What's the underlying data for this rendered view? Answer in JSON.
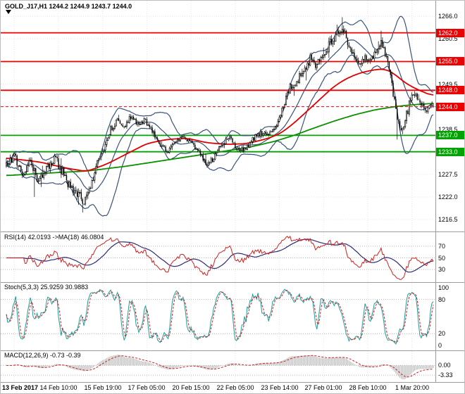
{
  "header": {
    "symbol_info": "GOLD_J17,H1  1244.2 1244.9 1243.7 1244.0"
  },
  "colors": {
    "background": "#ffffff",
    "grid": "#e6e6e6",
    "divider": "#9c9c9c",
    "axis_text": "#000000",
    "candle": "#000000",
    "bollinger": "#3a5378",
    "ma_red": "#e10000",
    "ma_green": "#0b9000",
    "line_red": "#ef0000",
    "line_green": "#00a400",
    "level_dotted": "#b8b8b8",
    "rsi_line": "#cf1f1f",
    "rsi_ma": "#2a2a7a",
    "stoch_k": "#1b9e9e",
    "stoch_d": "#cf1f1f",
    "macd_hist": "#b4b4b4",
    "macd_signal": "#cf1f1f",
    "badge_text": "#ffffff"
  },
  "chart_data": {
    "type": "candlestick",
    "symbol": "GOLD_J17",
    "timeframe": "H1",
    "current_ohlc": {
      "open": 1244.2,
      "high": 1244.9,
      "low": 1243.7,
      "close": 1244.0
    },
    "current_price": 1244.0,
    "bars": 320,
    "seed": 20170302,
    "price_axis": {
      "min": 1214.6,
      "max": 1268.8,
      "ticks": [
        1266.0,
        1260.5,
        1255.0,
        1249.5,
        1244.0,
        1238.5,
        1233.0,
        1227.5,
        1222.0,
        1216.5
      ]
    },
    "hlines": [
      {
        "price": 1262.0,
        "color": "red",
        "role": "resistance-1262"
      },
      {
        "price": 1255.0,
        "color": "red",
        "role": "resistance-1255"
      },
      {
        "price": 1248.0,
        "color": "red",
        "role": "resistance-1248"
      },
      {
        "price": 1237.0,
        "color": "green",
        "role": "support-1237"
      },
      {
        "price": 1233.0,
        "color": "green",
        "role": "support-1233"
      }
    ],
    "x_axis": {
      "labels": [
        "13 Feb 2017",
        "14 Feb 10:00",
        "15 Feb 19:00",
        "17 Feb 05:00",
        "20 Feb 15:00",
        "22 Feb 05:00",
        "23 Feb 14:00",
        "27 Feb 01:00",
        "28 Feb 10:00",
        "1 Mar 20:00"
      ],
      "bars": [
        6,
        39,
        72,
        105,
        138,
        171,
        204,
        237,
        270,
        303
      ]
    },
    "close_anchors": [
      [
        0,
        1229.5
      ],
      [
        6,
        1232
      ],
      [
        12,
        1227
      ],
      [
        18,
        1230.5
      ],
      [
        24,
        1226
      ],
      [
        30,
        1229
      ],
      [
        36,
        1231.5
      ],
      [
        42,
        1228
      ],
      [
        48,
        1224
      ],
      [
        54,
        1222.5
      ],
      [
        58,
        1220.5
      ],
      [
        62,
        1224
      ],
      [
        66,
        1228
      ],
      [
        70,
        1232
      ],
      [
        74,
        1235
      ],
      [
        78,
        1238.5
      ],
      [
        83,
        1240.5
      ],
      [
        88,
        1239
      ],
      [
        93,
        1241.5
      ],
      [
        98,
        1240
      ],
      [
        104,
        1240.5
      ],
      [
        110,
        1237.5
      ],
      [
        116,
        1234.5
      ],
      [
        121,
        1233
      ],
      [
        127,
        1235.5
      ],
      [
        133,
        1236.5
      ],
      [
        139,
        1235
      ],
      [
        145,
        1232.5
      ],
      [
        150,
        1230
      ],
      [
        155,
        1231.5
      ],
      [
        160,
        1234.5
      ],
      [
        166,
        1236.5
      ],
      [
        172,
        1234
      ],
      [
        178,
        1233.5
      ],
      [
        184,
        1236
      ],
      [
        190,
        1237.5
      ],
      [
        196,
        1237.5
      ],
      [
        200,
        1238
      ],
      [
        204,
        1241
      ],
      [
        208,
        1245.5
      ],
      [
        212,
        1248.5
      ],
      [
        217,
        1250
      ],
      [
        222,
        1253
      ],
      [
        227,
        1255.5
      ],
      [
        232,
        1254
      ],
      [
        237,
        1257
      ],
      [
        242,
        1259.5
      ],
      [
        247,
        1261.5
      ],
      [
        252,
        1262.5
      ],
      [
        256,
        1259
      ],
      [
        260,
        1255.5
      ],
      [
        264,
        1254
      ],
      [
        268,
        1256.5
      ],
      [
        272,
        1255
      ],
      [
        276,
        1257.5
      ],
      [
        280,
        1259.5
      ],
      [
        284,
        1256
      ],
      [
        287,
        1251
      ],
      [
        290,
        1245
      ],
      [
        293,
        1239.5
      ],
      [
        296,
        1238
      ],
      [
        299,
        1242
      ],
      [
        302,
        1245.5
      ],
      [
        305,
        1247.5
      ],
      [
        308,
        1246
      ],
      [
        311,
        1244.5
      ],
      [
        314,
        1243
      ],
      [
        317,
        1244.5
      ],
      [
        319,
        1244.0
      ]
    ],
    "vol_anchors": [
      [
        0,
        1.6
      ],
      [
        30,
        1.8
      ],
      [
        58,
        2.1
      ],
      [
        80,
        1.4
      ],
      [
        120,
        1.0
      ],
      [
        150,
        1.3
      ],
      [
        200,
        1.1
      ],
      [
        210,
        1.9
      ],
      [
        250,
        2.1
      ],
      [
        270,
        1.6
      ],
      [
        290,
        2.0
      ],
      [
        319,
        1.2
      ]
    ],
    "wick_events": [
      {
        "bar": 57,
        "low": 1218.2
      },
      {
        "bar": 21,
        "low": 1222.0
      },
      {
        "bar": 247,
        "high": 1264.0
      },
      {
        "bar": 251,
        "high": 1265.8
      },
      {
        "bar": 292,
        "low": 1236.0
      }
    ],
    "ma_red_anchors": [
      [
        0,
        1231.5
      ],
      [
        25,
        1230.5
      ],
      [
        45,
        1229.0
      ],
      [
        60,
        1228.2
      ],
      [
        75,
        1230.0
      ],
      [
        90,
        1232.5
      ],
      [
        105,
        1235.0
      ],
      [
        120,
        1236.0
      ],
      [
        135,
        1236.3
      ],
      [
        150,
        1235.2
      ],
      [
        165,
        1234.8
      ],
      [
        180,
        1235.0
      ],
      [
        195,
        1236.2
      ],
      [
        205,
        1237.5
      ],
      [
        215,
        1240.0
      ],
      [
        225,
        1243.0
      ],
      [
        235,
        1246.0
      ],
      [
        245,
        1249.0
      ],
      [
        255,
        1251.0
      ],
      [
        265,
        1252.3
      ],
      [
        275,
        1253.0
      ],
      [
        283,
        1253.2
      ],
      [
        290,
        1252.0
      ],
      [
        297,
        1250.0
      ],
      [
        305,
        1248.5
      ],
      [
        312,
        1247.5
      ],
      [
        319,
        1246.6
      ]
    ],
    "ma_green_anchors": [
      [
        0,
        1227.2
      ],
      [
        30,
        1227.8
      ],
      [
        60,
        1228.3
      ],
      [
        90,
        1229.5
      ],
      [
        120,
        1231.0
      ],
      [
        150,
        1232.5
      ],
      [
        180,
        1234.0
      ],
      [
        200,
        1235.5
      ],
      [
        215,
        1237.0
      ],
      [
        230,
        1238.8
      ],
      [
        245,
        1240.5
      ],
      [
        260,
        1242.0
      ],
      [
        275,
        1243.2
      ],
      [
        290,
        1244.0
      ],
      [
        305,
        1244.5
      ],
      [
        319,
        1244.8
      ]
    ],
    "indicators": {
      "bollinger": {
        "period": 20,
        "deviation": 2
      },
      "rsi": {
        "label": "RSI(14) 42.0193  ->MA(18) 46.0804",
        "period": 14,
        "ma_period": 18,
        "value": 42.0193,
        "ma_value": 46.0804,
        "ticks": [
          70,
          50,
          30
        ],
        "range": [
          12,
          88
        ]
      },
      "stoch": {
        "label": "Stoch(5,3,3) 25.9259 30.9883",
        "k": 5,
        "d": 3,
        "slowing": 3,
        "value": 25.9259,
        "signal_value": 30.9883,
        "ticks": [
          100,
          80,
          20,
          0
        ],
        "dotted": [
          80,
          20
        ],
        "range": [
          -4,
          104
        ]
      },
      "macd": {
        "label": "MACD(12,26,9) -0.73 -0.39",
        "fast": 12,
        "slow": 26,
        "signal": 9,
        "value": -0.73,
        "signal_value": -0.39,
        "ticks": [
          {
            "value": 0,
            "label": "0.00"
          },
          {
            "value": -3.33,
            "label": "-3.33"
          }
        ]
      }
    }
  }
}
